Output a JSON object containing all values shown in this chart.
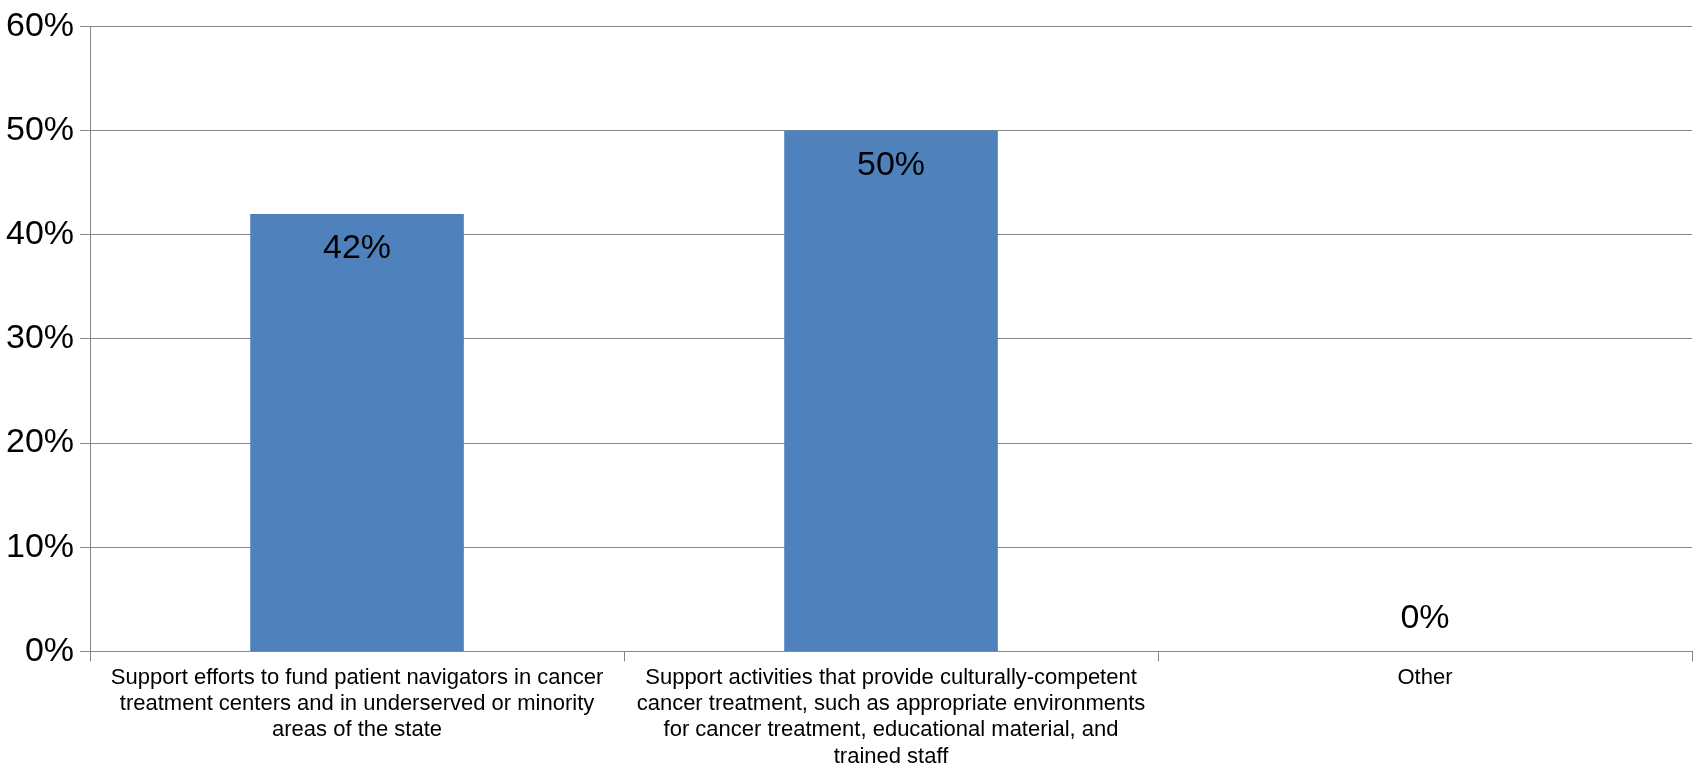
{
  "chart_data": {
    "type": "bar",
    "categories": [
      "Support efforts to fund patient navigators in cancer treatment centers and in underserved or minority areas of the state",
      "Support activities that provide culturally-competent cancer treatment, such as appropriate environments for cancer treatment, educational material, and trained staff",
      "Other"
    ],
    "values": [
      42,
      50,
      0
    ],
    "color": "#4f81bd",
    "value_labels": [
      "42%",
      "50%",
      "0%"
    ],
    "ylim": [
      0,
      60
    ],
    "yticks": [
      {
        "value": 0,
        "label": "0%"
      },
      {
        "value": 10,
        "label": "10%"
      },
      {
        "value": 20,
        "label": "20%"
      },
      {
        "value": 30,
        "label": "30%"
      },
      {
        "value": 40,
        "label": "40%"
      },
      {
        "value": 50,
        "label": "50%"
      },
      {
        "value": 60,
        "label": "60%"
      }
    ],
    "grid": "y",
    "legend": false
  }
}
